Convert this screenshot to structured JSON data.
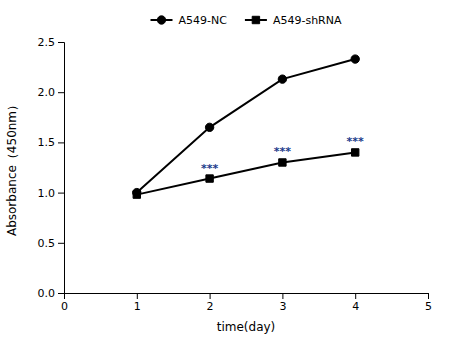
{
  "chart_data": {
    "type": "line",
    "xlabel": "time(day)",
    "ylabel": "Absorbance（450nm）",
    "x": [
      1,
      2,
      3,
      4
    ],
    "series": [
      {
        "name": "A549-NC",
        "color": "#000000",
        "marker": "circle",
        "values": [
          1.0,
          1.65,
          2.13,
          2.33
        ]
      },
      {
        "name": "A549-shRNA",
        "color": "#000000",
        "marker": "square",
        "values": [
          0.98,
          1.14,
          1.3,
          1.4
        ]
      }
    ],
    "xlim": [
      0,
      5
    ],
    "ylim": [
      0.0,
      2.5
    ],
    "xticks": [
      0,
      1,
      2,
      3,
      4,
      5
    ],
    "yticks": [
      {
        "value": 0.0,
        "label": "0.0"
      },
      {
        "value": 0.5,
        "label": "0.5"
      },
      {
        "value": 1.0,
        "label": "1.0"
      },
      {
        "value": 1.5,
        "label": "1.5"
      },
      {
        "value": 2.0,
        "label": "2.0"
      },
      {
        "value": 2.5,
        "label": "2.5"
      }
    ],
    "annotations": [
      {
        "text": "***",
        "x": 2,
        "y": 1.21,
        "color": "#1a3a8a"
      },
      {
        "text": "***",
        "x": 3,
        "y": 1.37,
        "color": "#1a3a8a"
      },
      {
        "text": "***",
        "x": 4,
        "y": 1.47,
        "color": "#1a3a8a"
      }
    ],
    "legend": "top",
    "grid": false
  }
}
